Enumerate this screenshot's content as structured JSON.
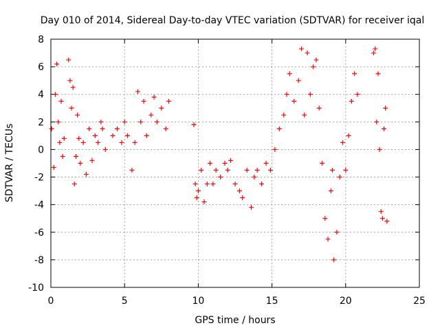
{
  "chart_data": {
    "type": "scatter",
    "title": "Day 010 of 2014, Sidereal Day-to-day VTEC variation (SDTVAR) for receiver iqal",
    "xlabel": "GPS time / hours",
    "ylabel": "SDTVAR / TECUs",
    "xlim": [
      0,
      25
    ],
    "ylim": [
      -10,
      8
    ],
    "xticks": [
      0,
      5,
      10,
      15,
      20,
      25
    ],
    "yticks": [
      -10,
      -8,
      -6,
      -4,
      -2,
      0,
      2,
      4,
      6,
      8
    ],
    "grid": true,
    "marker": "+",
    "color": "#ff0000",
    "series": [
      {
        "name": "SDTVAR",
        "x": [
          0.05,
          0.2,
          0.3,
          0.4,
          0.5,
          0.6,
          0.7,
          0.8,
          0.9,
          1.2,
          1.3,
          1.4,
          1.5,
          1.6,
          1.7,
          1.8,
          1.9,
          2.0,
          2.2,
          2.4,
          2.6,
          2.8,
          3.0,
          3.2,
          3.4,
          3.5,
          3.7,
          4.2,
          4.5,
          4.8,
          5.0,
          5.2,
          5.5,
          5.7,
          5.9,
          6.1,
          6.3,
          6.5,
          6.8,
          7.0,
          7.2,
          7.5,
          7.8,
          8.0,
          9.7,
          9.8,
          9.9,
          10.0,
          10.2,
          10.4,
          10.6,
          10.8,
          11.0,
          11.2,
          11.5,
          11.8,
          12.0,
          12.2,
          12.5,
          12.8,
          13.0,
          13.3,
          13.6,
          13.8,
          14.0,
          14.3,
          14.6,
          14.9,
          15.2,
          15.5,
          15.8,
          16.0,
          16.2,
          16.5,
          16.8,
          17.0,
          17.2,
          17.4,
          17.6,
          17.8,
          18.0,
          18.2,
          18.4,
          18.6,
          18.8,
          19.0,
          19.1,
          19.2,
          19.4,
          19.6,
          19.8,
          20.0,
          20.2,
          20.4,
          20.6,
          20.8,
          21.9,
          22.0,
          22.1,
          22.2,
          22.3,
          22.4,
          22.5,
          22.6,
          22.7,
          22.8
        ],
        "y": [
          1.5,
          -1.3,
          4.0,
          6.2,
          2.0,
          0.5,
          3.5,
          -0.5,
          0.8,
          6.5,
          5.0,
          3.0,
          4.5,
          -2.5,
          -0.5,
          2.5,
          0.8,
          -1.0,
          0.5,
          -1.8,
          1.5,
          -0.8,
          1.0,
          0.5,
          2.0,
          1.5,
          0.0,
          1.0,
          1.5,
          0.5,
          2.0,
          1.0,
          -1.5,
          0.5,
          4.2,
          2.0,
          3.5,
          1.0,
          2.5,
          3.8,
          2.0,
          3.0,
          1.5,
          3.5,
          1.8,
          -2.5,
          -3.5,
          -3.0,
          -1.5,
          -3.8,
          -2.5,
          -1.0,
          -2.5,
          -1.5,
          -2.0,
          -1.0,
          -1.5,
          -0.8,
          -2.5,
          -3.0,
          -3.5,
          -1.5,
          -4.2,
          -2.0,
          -1.5,
          -2.5,
          -1.0,
          -1.5,
          0.0,
          1.5,
          2.5,
          4.0,
          5.5,
          3.5,
          5.0,
          7.3,
          2.5,
          7.0,
          4.0,
          6.0,
          6.5,
          3.0,
          -1.0,
          -5.0,
          -6.5,
          -3.0,
          -1.5,
          -8.0,
          -6.0,
          -2.0,
          0.5,
          -1.5,
          1.0,
          3.5,
          5.5,
          4.0,
          7.0,
          7.3,
          2.0,
          5.5,
          0.0,
          -4.5,
          -5.0,
          1.5,
          3.0,
          -5.2
        ]
      }
    ]
  }
}
